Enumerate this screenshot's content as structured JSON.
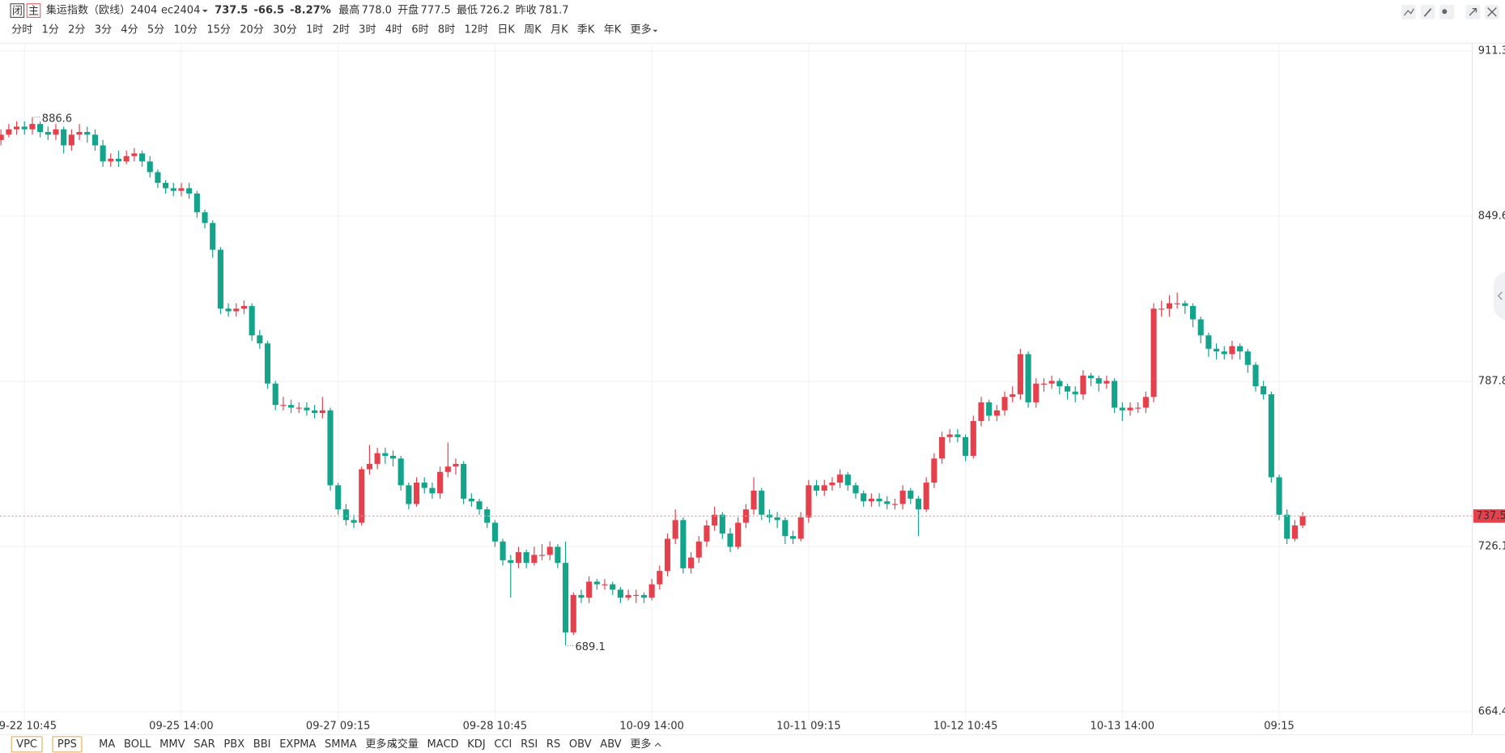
{
  "header": {
    "badges": [
      "闭",
      "主"
    ],
    "name": "集运指数（欧线）2404",
    "code": "ec2404",
    "change": "-66.5",
    "pct": "-8.27%",
    "stats": [
      {
        "label": "最高",
        "value": "778.0"
      },
      {
        "label": "开盘",
        "value": "777.5"
      },
      {
        "label": "最低",
        "value": "726.2"
      },
      {
        "label": "昨收",
        "value": "781.7"
      }
    ]
  },
  "periods": {
    "items": [
      "分时",
      "1分",
      "2分",
      "3分",
      "4分",
      "5分",
      "10分",
      "15分",
      "20分",
      "30分",
      "1时",
      "2时",
      "3时",
      "4时",
      "6时",
      "8时",
      "12时",
      "日K",
      "周K",
      "月K",
      "季K",
      "年K",
      "更多"
    ],
    "active": 7
  },
  "indicators": {
    "boxed": [
      "VPC",
      "PPS"
    ],
    "main": [
      "MA",
      "BOLL",
      "MMV",
      "SAR",
      "PBX",
      "BBI",
      "EXPMA",
      "SMMA",
      "更多"
    ],
    "sub": [
      "成交量",
      "MACD",
      "KDJ",
      "CCI",
      "RSI",
      "RS",
      "OBV",
      "ABV",
      "更多"
    ]
  },
  "chart_data": {
    "type": "candlestick",
    "up_color": "#e5414d",
    "down_color": "#14a38b",
    "ylim": [
      664.4,
      911.3
    ],
    "yticks": [
      664.4,
      726.1,
      787.8,
      849.6,
      911.3
    ],
    "grid": true,
    "categories": [
      null,
      null,
      null,
      "09-22 10:45",
      null,
      null,
      null,
      null,
      null,
      null,
      null,
      null,
      null,
      null,
      null,
      null,
      null,
      null,
      null,
      null,
      null,
      null,
      null,
      "09-25 14:00",
      null,
      null,
      null,
      null,
      null,
      null,
      null,
      null,
      null,
      null,
      null,
      null,
      null,
      null,
      null,
      null,
      null,
      null,
      null,
      "09-27 09:15",
      null,
      null,
      null,
      null,
      null,
      null,
      null,
      null,
      null,
      null,
      null,
      null,
      null,
      null,
      null,
      null,
      null,
      null,
      null,
      "09-28 10:45",
      null,
      null,
      null,
      null,
      null,
      null,
      null,
      null,
      null,
      null,
      null,
      null,
      null,
      null,
      null,
      null,
      null,
      null,
      null,
      "10-09 14:00",
      null,
      null,
      null,
      null,
      null,
      null,
      null,
      null,
      null,
      null,
      null,
      null,
      null,
      null,
      null,
      null,
      null,
      null,
      null,
      "10-11 09:15",
      null,
      null,
      null,
      null,
      null,
      null,
      null,
      null,
      null,
      null,
      null,
      null,
      null,
      null,
      null,
      null,
      null,
      null,
      null,
      "10-12 10:45",
      null,
      null,
      null,
      null,
      null,
      null,
      null,
      null,
      null,
      null,
      null,
      null,
      null,
      null,
      null,
      null,
      null,
      null,
      null,
      "10-13 14:00",
      null,
      null,
      null,
      null,
      null,
      null,
      null,
      null,
      null,
      null,
      null,
      null,
      null,
      null,
      null,
      null,
      null,
      null,
      null,
      "09:15",
      null,
      null,
      null
    ],
    "open": [
      878,
      880,
      882,
      883,
      882,
      884,
      881,
      880,
      882,
      876,
      880,
      881,
      880,
      876,
      870,
      871,
      870,
      872,
      873,
      870,
      866,
      862,
      860,
      859,
      860,
      858,
      851,
      847,
      837,
      815,
      814,
      815,
      816,
      805,
      802,
      787,
      779,
      779,
      778,
      778,
      777,
      776,
      777,
      749,
      740,
      736,
      735,
      755,
      757,
      761,
      760,
      759,
      749,
      742,
      750,
      748,
      746,
      754,
      756,
      757,
      744,
      743,
      740,
      735,
      728,
      721,
      720,
      724,
      720,
      723,
      723,
      726,
      720,
      694,
      708,
      707,
      713,
      712,
      712,
      710,
      707,
      708,
      708,
      707,
      712,
      717,
      729,
      736,
      718,
      722,
      728,
      734,
      738,
      731,
      726,
      735,
      740,
      747,
      738,
      737,
      736,
      730,
      729,
      737,
      749,
      747,
      749,
      750,
      753,
      749,
      746,
      743,
      744,
      743,
      742,
      742,
      747,
      744,
      740,
      750,
      759,
      767,
      768,
      767,
      760,
      773,
      780,
      775,
      777,
      782,
      783,
      798,
      780,
      787,
      787,
      788,
      786,
      784,
      783,
      790,
      789,
      787,
      788,
      778,
      777,
      778,
      778,
      782,
      815,
      815,
      817,
      817,
      816,
      811,
      805,
      800,
      799,
      798,
      801,
      799,
      794,
      786,
      783,
      752,
      738,
      729,
      734
    ],
    "high": [
      882,
      884,
      885,
      885,
      886.6,
      885,
      883,
      884,
      883,
      882,
      884,
      883,
      882,
      878,
      873,
      874,
      874,
      875,
      874,
      872,
      867,
      863,
      862,
      862,
      862,
      859,
      852,
      848,
      838,
      817,
      817,
      818,
      817,
      807,
      803,
      788,
      782,
      781,
      780,
      780,
      779,
      782,
      778,
      750,
      742,
      738,
      756,
      764,
      763,
      763,
      762,
      760,
      750,
      752,
      752,
      750,
      756,
      765,
      759,
      758,
      746,
      744,
      741,
      736,
      729,
      723,
      726,
      725,
      726,
      727,
      728,
      727,
      728,
      709,
      710,
      715,
      714,
      714,
      713,
      711,
      710,
      710,
      709,
      714,
      719,
      731,
      740,
      737,
      724,
      730,
      736,
      741,
      739,
      733,
      737,
      742,
      752,
      748,
      740,
      739,
      737,
      732,
      739,
      751,
      751,
      751,
      752,
      755,
      754,
      750,
      747,
      746,
      746,
      745,
      744,
      749,
      748,
      745,
      752,
      761,
      769,
      770,
      770,
      768,
      775,
      782,
      781,
      779,
      784,
      786,
      800,
      799,
      789,
      789,
      790,
      789,
      787,
      786,
      792,
      791,
      790,
      790,
      789,
      780,
      780,
      780,
      784,
      817,
      818,
      820,
      821,
      818,
      817,
      812,
      806,
      802,
      801,
      803,
      802,
      800,
      795,
      788,
      784,
      753,
      740,
      736,
      739
    ],
    "low": [
      876,
      879,
      880,
      880,
      880,
      879,
      878,
      878,
      873,
      874,
      878,
      877,
      874,
      868,
      868,
      868,
      869,
      870,
      868,
      864,
      860,
      858,
      857,
      857,
      856,
      849,
      845,
      834,
      813,
      812,
      812,
      813,
      803,
      800,
      785,
      777,
      777,
      776,
      776,
      775,
      774,
      774,
      747,
      738,
      734,
      733,
      734,
      753,
      755,
      757,
      756,
      747,
      740,
      741,
      746,
      744,
      744,
      752,
      753,
      742,
      741,
      738,
      733,
      726,
      719,
      707,
      718,
      718,
      719,
      721,
      721,
      718,
      689.1,
      693,
      705,
      705,
      710,
      710,
      708,
      705,
      706,
      705,
      705,
      706,
      710,
      715,
      727,
      716,
      716,
      720,
      726,
      732,
      729,
      724,
      725,
      733,
      738,
      736,
      735,
      733,
      727,
      727,
      728,
      735,
      745,
      745,
      747,
      748,
      747,
      744,
      741,
      741,
      741,
      740,
      740,
      740,
      742,
      730,
      739,
      748,
      757,
      765,
      765,
      758,
      759,
      771,
      773,
      773,
      775,
      780,
      781,
      778,
      778,
      784,
      785,
      783,
      781,
      780,
      781,
      786,
      784,
      785,
      776,
      773,
      775,
      776,
      776,
      780,
      812,
      812,
      815,
      813,
      808,
      802,
      797,
      796,
      796,
      796,
      796,
      791,
      784,
      781,
      750,
      736,
      727,
      728,
      733
    ],
    "close": [
      880,
      882,
      883,
      882,
      884,
      881,
      880,
      882,
      876,
      880,
      881,
      880,
      876,
      870,
      871,
      870,
      872,
      873,
      870,
      866,
      862,
      860,
      859,
      860,
      858,
      851,
      847,
      837,
      815,
      814,
      815,
      816,
      805,
      802,
      787,
      779,
      779,
      778,
      778,
      777,
      776,
      777,
      749,
      740,
      736,
      735,
      755,
      757,
      761,
      760,
      759,
      749,
      742,
      750,
      748,
      746,
      754,
      756,
      757,
      744,
      743,
      740,
      735,
      728,
      721,
      720,
      724,
      720,
      723,
      723,
      726,
      720,
      694,
      708,
      707,
      713,
      712,
      712,
      710,
      707,
      708,
      708,
      707,
      712,
      717,
      729,
      736,
      718,
      722,
      728,
      734,
      738,
      731,
      726,
      735,
      740,
      747,
      738,
      737,
      736,
      730,
      729,
      737,
      749,
      747,
      749,
      750,
      753,
      749,
      746,
      743,
      744,
      743,
      742,
      742,
      747,
      744,
      740,
      750,
      759,
      767,
      768,
      767,
      760,
      773,
      780,
      775,
      777,
      782,
      783,
      798,
      780,
      787,
      787,
      788,
      786,
      784,
      783,
      790,
      789,
      787,
      788,
      778,
      777,
      778,
      778,
      782,
      815,
      815,
      817,
      817,
      816,
      811,
      805,
      800,
      799,
      798,
      801,
      799,
      794,
      786,
      783,
      752,
      738,
      729,
      734,
      737.5
    ]
  }
}
